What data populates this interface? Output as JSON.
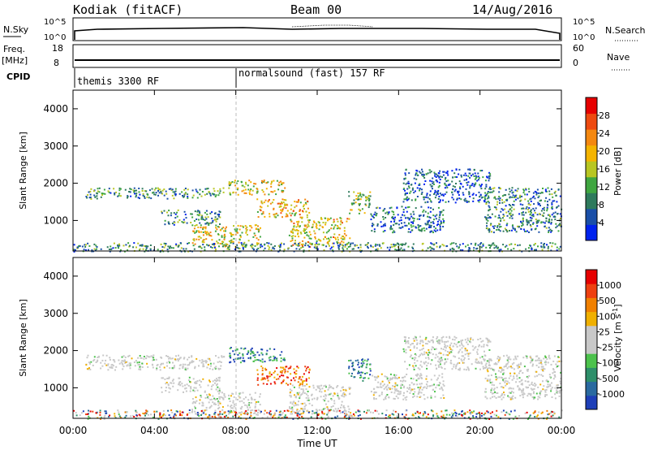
{
  "header": {
    "station": "Kodiak (fitACF)",
    "beam": "Beam 00",
    "date": "14/Aug/2016"
  },
  "top_panels": {
    "nsky_label": "N.Sky",
    "nsearch_label": "N.Search",
    "nsky_ticks": [
      "10^5",
      "10^0"
    ],
    "nsearch_ticks": [
      "10^5",
      "10^0"
    ],
    "freq_label": "Freq.",
    "freq_unit": "[MHz]",
    "freq_ticks": [
      "18",
      "8"
    ],
    "nave_label": "Nave",
    "nave_ticks": [
      "60",
      "0"
    ],
    "cpid_label": "CPID",
    "cpid_segments": [
      {
        "label": "themis 3300 RF"
      },
      {
        "label": "normalsound (fast) 157 RF"
      }
    ]
  },
  "time_axis": {
    "title": "Time UT",
    "ticks": [
      "00:00",
      "04:00",
      "08:00",
      "12:00",
      "16:00",
      "20:00",
      "00:00"
    ]
  },
  "chart_data": [
    {
      "type": "heatmap",
      "name": "power",
      "ylabel": "Slant Range [km]",
      "y_ticks": [
        "1000",
        "2000",
        "3000",
        "4000"
      ],
      "ylim": [
        180,
        4500
      ],
      "xlim_hours": [
        0,
        24
      ],
      "colorbar": {
        "title": "Power [dB]",
        "labels": [
          "4",
          "8",
          "12",
          "16",
          "20",
          "24",
          "28"
        ],
        "colors": [
          "#0022ee",
          "#1a4fa8",
          "#2e7a5c",
          "#3fa640",
          "#b8c622",
          "#f4b400",
          "#f48810",
          "#ee4a10",
          "#e60000"
        ]
      },
      "echo_regions": [
        {
          "t0": 0.6,
          "t1": 7.4,
          "r0": 1600,
          "r1": 1900,
          "level": 0.32
        },
        {
          "t0": 4.3,
          "t1": 7.2,
          "r0": 900,
          "r1": 1300,
          "level": 0.3
        },
        {
          "t0": 5.8,
          "t1": 9.2,
          "r0": 300,
          "r1": 900,
          "level": 0.55
        },
        {
          "t0": 7.6,
          "t1": 10.4,
          "r0": 1700,
          "r1": 2100,
          "level": 0.55
        },
        {
          "t0": 9.0,
          "t1": 11.6,
          "r0": 1100,
          "r1": 1600,
          "level": 0.62
        },
        {
          "t0": 10.6,
          "t1": 13.6,
          "r0": 300,
          "r1": 1100,
          "level": 0.58
        },
        {
          "t0": 13.5,
          "t1": 14.6,
          "r0": 1200,
          "r1": 1800,
          "level": 0.45
        },
        {
          "t0": 14.6,
          "t1": 18.2,
          "r0": 700,
          "r1": 1400,
          "level": 0.22
        },
        {
          "t0": 16.2,
          "t1": 20.5,
          "r0": 1500,
          "r1": 2400,
          "level": 0.18
        },
        {
          "t0": 20.2,
          "t1": 24.0,
          "r0": 700,
          "r1": 1900,
          "level": 0.28
        },
        {
          "t0": 0.0,
          "t1": 24.0,
          "r0": 180,
          "r1": 420,
          "level": 0.3
        }
      ]
    },
    {
      "type": "heatmap",
      "name": "velocity",
      "ylabel": "Slant Range [km]",
      "y_ticks": [
        "1000",
        "2000",
        "3000",
        "4000"
      ],
      "ylim": [
        180,
        4500
      ],
      "xlim_hours": [
        0,
        24
      ],
      "colorbar": {
        "title": "Velocity [m s",
        "title_sup": "-1",
        "title_end": "]",
        "labels": [
          "1000",
          "500",
          "100",
          "25",
          "-25",
          "-100",
          "-500",
          "-1000"
        ],
        "colors": [
          "#1e3fb8",
          "#2a6aa0",
          "#2e8f6a",
          "#4cc24c",
          "#c8c8c8",
          "#c8c8c8",
          "#f0b000",
          "#f08000",
          "#ee4010",
          "#e60000"
        ]
      },
      "echo_regions": [
        {
          "t0": 0.6,
          "t1": 7.4,
          "r0": 1500,
          "r1": 1900,
          "kind": "ground"
        },
        {
          "t0": 4.3,
          "t1": 7.2,
          "r0": 900,
          "r1": 1300,
          "kind": "ground"
        },
        {
          "t0": 5.8,
          "t1": 9.2,
          "r0": 300,
          "r1": 900,
          "kind": "ground"
        },
        {
          "t0": 7.6,
          "t1": 10.4,
          "r0": 1700,
          "r1": 2100,
          "kind": "toward"
        },
        {
          "t0": 9.0,
          "t1": 11.6,
          "r0": 1100,
          "r1": 1600,
          "kind": "away"
        },
        {
          "t0": 10.6,
          "t1": 13.6,
          "r0": 300,
          "r1": 1100,
          "kind": "ground"
        },
        {
          "t0": 13.5,
          "t1": 14.6,
          "r0": 1200,
          "r1": 1800,
          "kind": "toward"
        },
        {
          "t0": 14.6,
          "t1": 18.2,
          "r0": 700,
          "r1": 1400,
          "kind": "ground"
        },
        {
          "t0": 16.2,
          "t1": 20.5,
          "r0": 1500,
          "r1": 2400,
          "kind": "ground"
        },
        {
          "t0": 20.2,
          "t1": 24.0,
          "r0": 700,
          "r1": 1900,
          "kind": "ground"
        },
        {
          "t0": 0.0,
          "t1": 24.0,
          "r0": 180,
          "r1": 420,
          "kind": "mixed"
        }
      ]
    }
  ]
}
